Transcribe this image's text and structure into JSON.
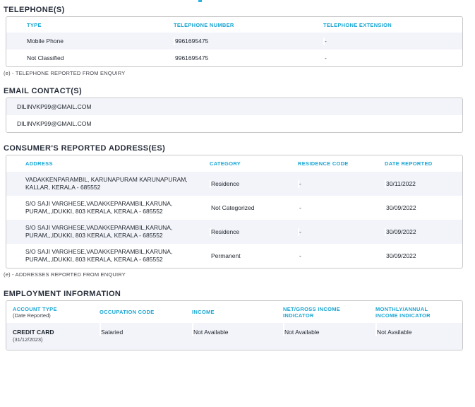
{
  "colors": {
    "accent_cyan": "#19a6d3",
    "heading_text": "#272e3a",
    "body_text": "#1f252d",
    "row_alt_bg": "#f3f4fa",
    "table_border": "#c8c8c8"
  },
  "telephones": {
    "title": "TELEPHONE(S)",
    "columns": [
      "TYPE",
      "TELEPHONE NUMBER",
      "TELEPHONE EXTENSION"
    ],
    "rows": [
      {
        "type": "Mobile Phone",
        "number": "9961695475",
        "extension": "-"
      },
      {
        "type": "Not Classified",
        "number": "9961695475",
        "extension": "-"
      }
    ],
    "footnote": "(e) - TELEPHONE REPORTED FROM ENQUIRY"
  },
  "emails": {
    "title": "EMAIL CONTACT(S)",
    "rows": [
      "DILINVKP99@GMAIL.COM",
      "DILINVKP99@GMAIL.COM"
    ]
  },
  "addresses": {
    "title": "CONSUMER'S REPORTED ADDRESS(ES)",
    "columns": [
      "ADDRESS",
      "CATEGORY",
      "RESIDENCE CODE",
      "DATE REPORTED"
    ],
    "rows": [
      {
        "address": "VADAKKENPARAMBIL, KARUNAPURAM KARUNAPURAM, KALLAR, KERALA - 685552",
        "category": "Residence",
        "residence_code": "-",
        "date_reported": "30/11/2022"
      },
      {
        "address": "S/O SAJI VARGHESE,VADAKKEPARAMBIL,KARUNA, PURAM,,,IDUKKI, 803 KERALA, KERALA - 685552",
        "category": "Not Categorized",
        "residence_code": "-",
        "date_reported": "30/09/2022"
      },
      {
        "address": "S/O SAJI VARGHESE,VADAKKEPARAMBIL,KARUNA, PURAM,,,IDUKKI, 803 KERALA, KERALA - 685552",
        "category": "Residence",
        "residence_code": "-",
        "date_reported": "30/09/2022"
      },
      {
        "address": "S/O SAJI VARGHESE,VADAKKEPARAMBIL,KARUNA, PURAM,,,IDUKKI, 803 KERALA, KERALA - 685552",
        "category": "Permanent",
        "residence_code": "-",
        "date_reported": "30/09/2022"
      }
    ],
    "footnote": "(e) - ADDRESSES REPORTED FROM ENQUIRY"
  },
  "employment": {
    "title": "EMPLOYMENT INFORMATION",
    "columns": [
      "ACCOUNT TYPE",
      "OCCUPATION CODE",
      "INCOME",
      "NET/GROSS INCOME INDICATOR",
      "MONTHLY/ANNUAL INCOME INDICATOR"
    ],
    "account_type_sub_label": "(Date Reported)",
    "rows": [
      {
        "account_type": "CREDIT CARD",
        "date_reported": "(31/12/2023)",
        "occupation_code": "Salaried",
        "income": "Not Available",
        "net_gross_income_indicator": "Not Available",
        "monthly_annual_income_indicator": "Not Available"
      }
    ]
  }
}
